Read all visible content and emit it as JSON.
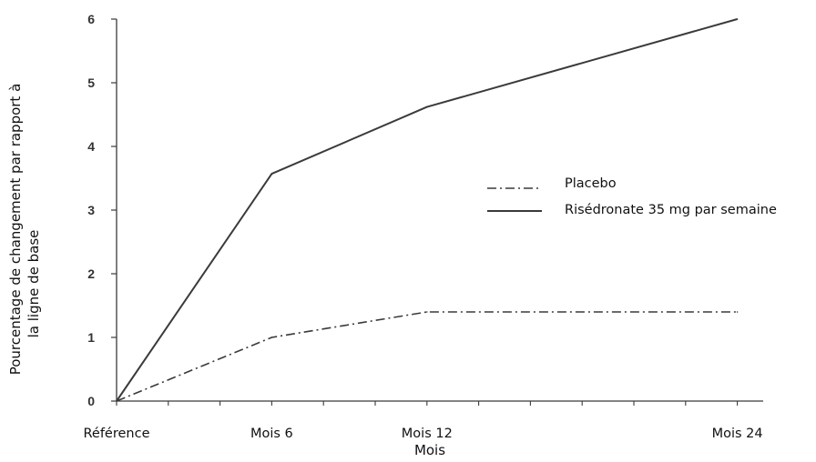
{
  "chart_data": {
    "type": "line",
    "title": "",
    "xlabel": "Mois",
    "ylabel_lines": [
      "Pourcentage de changement par rapport à",
      "la ligne de base"
    ],
    "x_positions": [
      0,
      6,
      12,
      24
    ],
    "categories": [
      "Référence",
      "Mois 6",
      "Mois 12",
      "Mois 24"
    ],
    "xlim": [
      0,
      25
    ],
    "ylim": [
      0,
      6
    ],
    "yticks": [
      0,
      1,
      2,
      3,
      4,
      5,
      6
    ],
    "grid": false,
    "legend_position": "right",
    "series": [
      {
        "name": "Placebo",
        "x": [
          0,
          6,
          12,
          24
        ],
        "values": [
          0,
          1.0,
          1.4,
          1.4
        ],
        "style": "dashdot"
      },
      {
        "name": "Risédronate 35 mg par semaine",
        "x": [
          0,
          6,
          12,
          24
        ],
        "values": [
          0,
          3.57,
          4.62,
          6.0
        ],
        "style": "solid"
      }
    ],
    "line_color": "#3a3a3a"
  }
}
